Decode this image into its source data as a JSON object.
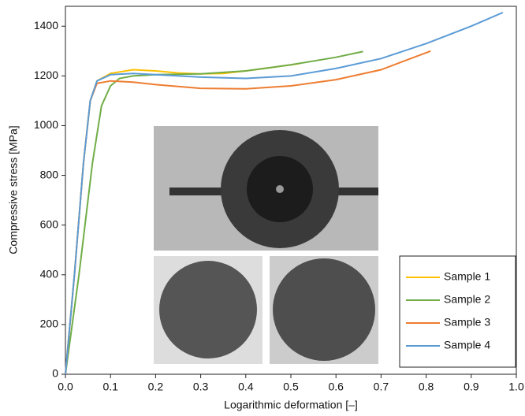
{
  "chart_data": {
    "type": "line",
    "xlabel": "Logarithmic deformation [–]",
    "ylabel": "Compressive stress [MPa]",
    "xlim": [
      0,
      1
    ],
    "ylim": [
      0,
      1480
    ],
    "xticks": [
      {
        "value": 0,
        "label": "0.0"
      },
      0.1,
      0.2,
      0.3,
      0.4,
      0.5,
      0.6,
      0.7,
      0.8,
      0.9,
      {
        "value": 1,
        "label": "1.0"
      }
    ],
    "yticks": [
      0,
      200,
      400,
      600,
      800,
      1000,
      1200,
      1400
    ],
    "legend": "lower right",
    "series": [
      {
        "name": "Sample 1",
        "color": "#ffc000",
        "x": [
          0,
          0.02,
          0.04,
          0.055,
          0.07,
          0.1,
          0.15,
          0.2,
          0.25,
          0.3,
          0.35,
          0.4,
          0.45,
          0.52
        ],
        "values": [
          0,
          400,
          850,
          1100,
          1180,
          1210,
          1225,
          1220,
          1212,
          1208,
          1210,
          1220,
          1232,
          1250
        ]
      },
      {
        "name": "Sample 2",
        "color": "#70ad47",
        "x": [
          0,
          0.03,
          0.06,
          0.08,
          0.1,
          0.12,
          0.15,
          0.2,
          0.3,
          0.4,
          0.5,
          0.6,
          0.66
        ],
        "values": [
          0,
          400,
          850,
          1080,
          1160,
          1190,
          1200,
          1205,
          1208,
          1220,
          1245,
          1275,
          1298
        ]
      },
      {
        "name": "Sample 3",
        "color": "#ed7d31",
        "x": [
          0,
          0.02,
          0.04,
          0.055,
          0.07,
          0.1,
          0.15,
          0.2,
          0.3,
          0.4,
          0.5,
          0.6,
          0.7,
          0.81
        ],
        "values": [
          0,
          400,
          850,
          1100,
          1170,
          1180,
          1175,
          1165,
          1150,
          1148,
          1160,
          1185,
          1225,
          1300
        ]
      },
      {
        "name": "Sample 4",
        "color": "#5b9bd5",
        "x": [
          0,
          0.02,
          0.04,
          0.055,
          0.07,
          0.1,
          0.15,
          0.2,
          0.3,
          0.4,
          0.5,
          0.6,
          0.7,
          0.8,
          0.9,
          0.97
        ],
        "values": [
          0,
          400,
          850,
          1100,
          1180,
          1205,
          1210,
          1205,
          1195,
          1190,
          1200,
          1230,
          1270,
          1330,
          1400,
          1455
        ]
      }
    ]
  }
}
